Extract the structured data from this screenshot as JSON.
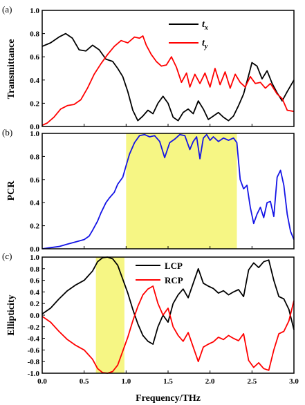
{
  "x_axis": {
    "label": "Frequency/THz",
    "ticks": [
      "0.0",
      "0.5",
      "1.0",
      "1.5",
      "2.0",
      "2.5",
      "3.0"
    ]
  },
  "chart_data": [
    {
      "type": "line",
      "panel_label": "(a)",
      "ylabel": "Transmittance",
      "xlim": [
        0,
        3
      ],
      "ylim": [
        0,
        1
      ],
      "yticks": [
        "0.0",
        "0.2",
        "0.4",
        "0.6",
        "0.8",
        "1.0"
      ],
      "legend": {
        "placement": "top-right"
      },
      "series": [
        {
          "name": "t",
          "sub": "x",
          "color": "#000000",
          "x": [
            0,
            0.1,
            0.2,
            0.28,
            0.36,
            0.44,
            0.52,
            0.6,
            0.68,
            0.76,
            0.84,
            0.9,
            0.96,
            1.02,
            1.08,
            1.14,
            1.2,
            1.26,
            1.32,
            1.38,
            1.44,
            1.5,
            1.56,
            1.62,
            1.68,
            1.74,
            1.8,
            1.86,
            1.92,
            1.98,
            2.04,
            2.1,
            2.16,
            2.22,
            2.28,
            2.34,
            2.4,
            2.46,
            2.5,
            2.56,
            2.62,
            2.68,
            2.74,
            2.8,
            2.86,
            2.92,
            3.0
          ],
          "y": [
            0.69,
            0.72,
            0.77,
            0.8,
            0.76,
            0.66,
            0.65,
            0.7,
            0.66,
            0.58,
            0.56,
            0.5,
            0.43,
            0.3,
            0.14,
            0.05,
            0.09,
            0.14,
            0.11,
            0.2,
            0.26,
            0.2,
            0.08,
            0.05,
            0.12,
            0.15,
            0.11,
            0.22,
            0.15,
            0.06,
            0.09,
            0.12,
            0.08,
            0.05,
            0.09,
            0.18,
            0.28,
            0.44,
            0.55,
            0.52,
            0.41,
            0.48,
            0.37,
            0.29,
            0.22,
            0.3,
            0.4
          ]
        },
        {
          "name": "t",
          "sub": "y",
          "color": "#ff0000",
          "x": [
            0,
            0.06,
            0.14,
            0.22,
            0.3,
            0.38,
            0.46,
            0.54,
            0.62,
            0.7,
            0.78,
            0.86,
            0.94,
            1.02,
            1.1,
            1.16,
            1.2,
            1.24,
            1.3,
            1.36,
            1.42,
            1.48,
            1.54,
            1.6,
            1.66,
            1.72,
            1.76,
            1.82,
            1.88,
            1.94,
            2.0,
            2.06,
            2.12,
            2.18,
            2.24,
            2.3,
            2.36,
            2.42,
            2.48,
            2.54,
            2.6,
            2.66,
            2.72,
            2.8,
            2.86,
            2.92,
            3.0
          ],
          "y": [
            0.01,
            0.03,
            0.08,
            0.15,
            0.18,
            0.19,
            0.23,
            0.33,
            0.45,
            0.54,
            0.62,
            0.69,
            0.74,
            0.72,
            0.77,
            0.76,
            0.78,
            0.7,
            0.62,
            0.56,
            0.52,
            0.53,
            0.6,
            0.51,
            0.38,
            0.46,
            0.34,
            0.45,
            0.37,
            0.46,
            0.34,
            0.5,
            0.36,
            0.47,
            0.33,
            0.45,
            0.38,
            0.34,
            0.43,
            0.37,
            0.38,
            0.33,
            0.37,
            0.28,
            0.24,
            0.14,
            0.13
          ]
        }
      ]
    },
    {
      "type": "line",
      "panel_label": "(b)",
      "ylabel": "PCR",
      "xlim": [
        0,
        3
      ],
      "ylim": [
        0,
        1
      ],
      "yticks": [
        "0.0",
        "0.2",
        "0.4",
        "0.6",
        "0.8",
        "1.0"
      ],
      "highlight": {
        "x0": 1.0,
        "x1": 2.32,
        "color": "#f5f56e"
      },
      "series": [
        {
          "color": "#1414e6",
          "x": [
            0,
            0.1,
            0.2,
            0.3,
            0.4,
            0.5,
            0.56,
            0.6,
            0.66,
            0.7,
            0.76,
            0.8,
            0.86,
            0.9,
            0.96,
            1.0,
            1.04,
            1.1,
            1.16,
            1.22,
            1.28,
            1.34,
            1.4,
            1.46,
            1.52,
            1.58,
            1.64,
            1.7,
            1.76,
            1.8,
            1.84,
            1.88,
            1.92,
            1.96,
            2.0,
            2.04,
            2.1,
            2.16,
            2.22,
            2.28,
            2.32,
            2.36,
            2.4,
            2.44,
            2.48,
            2.52,
            2.56,
            2.6,
            2.64,
            2.68,
            2.72,
            2.76,
            2.8,
            2.84,
            2.88,
            2.92,
            2.96,
            3.0
          ],
          "y": [
            0,
            0.01,
            0.02,
            0.04,
            0.06,
            0.08,
            0.11,
            0.16,
            0.24,
            0.31,
            0.4,
            0.44,
            0.49,
            0.56,
            0.62,
            0.72,
            0.82,
            0.92,
            0.98,
            0.99,
            0.97,
            0.98,
            0.93,
            0.79,
            0.92,
            0.95,
            0.99,
            0.98,
            0.86,
            0.93,
            0.97,
            0.78,
            0.96,
            0.99,
            0.94,
            0.97,
            0.93,
            0.96,
            0.94,
            0.96,
            0.92,
            0.6,
            0.52,
            0.55,
            0.36,
            0.22,
            0.3,
            0.36,
            0.27,
            0.4,
            0.41,
            0.28,
            0.62,
            0.68,
            0.55,
            0.3,
            0.15,
            0.08
          ]
        }
      ]
    },
    {
      "type": "line",
      "panel_label": "(c)",
      "ylabel": "Ellipticity",
      "xlim": [
        0,
        3
      ],
      "ylim": [
        -1,
        1
      ],
      "yticks": [
        "-1.0",
        "-0.8",
        "-0.6",
        "-0.4",
        "-0.2",
        "0.0",
        "0.2",
        "0.4",
        "0.6",
        "0.8",
        "1.0"
      ],
      "highlight": {
        "x0": 0.64,
        "x1": 0.98,
        "color": "#f5f56e"
      },
      "legend": {
        "placement": "top-center"
      },
      "series": [
        {
          "name": "LCP",
          "color": "#000000",
          "x": [
            0,
            0.1,
            0.2,
            0.3,
            0.4,
            0.5,
            0.6,
            0.66,
            0.72,
            0.78,
            0.84,
            0.9,
            0.96,
            1.02,
            1.08,
            1.14,
            1.2,
            1.26,
            1.32,
            1.38,
            1.44,
            1.5,
            1.56,
            1.62,
            1.68,
            1.74,
            1.8,
            1.86,
            1.92,
            1.98,
            2.04,
            2.1,
            2.16,
            2.22,
            2.28,
            2.34,
            2.4,
            2.46,
            2.52,
            2.58,
            2.64,
            2.7,
            2.76,
            2.82,
            2.88,
            2.94,
            3.0
          ],
          "y": [
            0.02,
            0.12,
            0.28,
            0.42,
            0.52,
            0.6,
            0.76,
            0.92,
            0.99,
            1.0,
            0.97,
            0.86,
            0.62,
            0.38,
            0.1,
            -0.15,
            -0.35,
            -0.45,
            -0.5,
            -0.2,
            0.0,
            -0.12,
            0.2,
            0.35,
            0.45,
            0.3,
            0.55,
            0.8,
            0.55,
            0.5,
            0.46,
            0.38,
            0.42,
            0.35,
            0.4,
            0.44,
            0.32,
            0.78,
            0.9,
            0.82,
            0.92,
            0.95,
            0.6,
            0.32,
            0.28,
            0.1,
            -0.25
          ]
        },
        {
          "name": "RCP",
          "color": "#ff0000",
          "x": [
            0,
            0.1,
            0.2,
            0.3,
            0.4,
            0.5,
            0.6,
            0.66,
            0.72,
            0.78,
            0.84,
            0.9,
            0.96,
            1.02,
            1.08,
            1.14,
            1.2,
            1.26,
            1.32,
            1.38,
            1.44,
            1.5,
            1.56,
            1.62,
            1.68,
            1.74,
            1.8,
            1.86,
            1.92,
            1.98,
            2.04,
            2.1,
            2.16,
            2.22,
            2.28,
            2.34,
            2.4,
            2.46,
            2.52,
            2.58,
            2.64,
            2.7,
            2.76,
            2.82,
            2.88,
            2.94,
            3.0
          ],
          "y": [
            -0.02,
            -0.12,
            -0.28,
            -0.42,
            -0.52,
            -0.6,
            -0.76,
            -0.92,
            -0.99,
            -1.0,
            -0.97,
            -0.86,
            -0.62,
            -0.38,
            -0.1,
            0.15,
            0.35,
            0.45,
            0.5,
            0.2,
            0.0,
            0.12,
            -0.2,
            -0.35,
            -0.45,
            -0.3,
            -0.55,
            -0.8,
            -0.55,
            -0.5,
            -0.46,
            -0.38,
            -0.42,
            -0.35,
            -0.4,
            -0.44,
            -0.32,
            -0.78,
            -0.9,
            -0.82,
            -0.92,
            -0.95,
            -0.6,
            -0.32,
            -0.28,
            -0.1,
            0.25
          ]
        }
      ]
    }
  ]
}
